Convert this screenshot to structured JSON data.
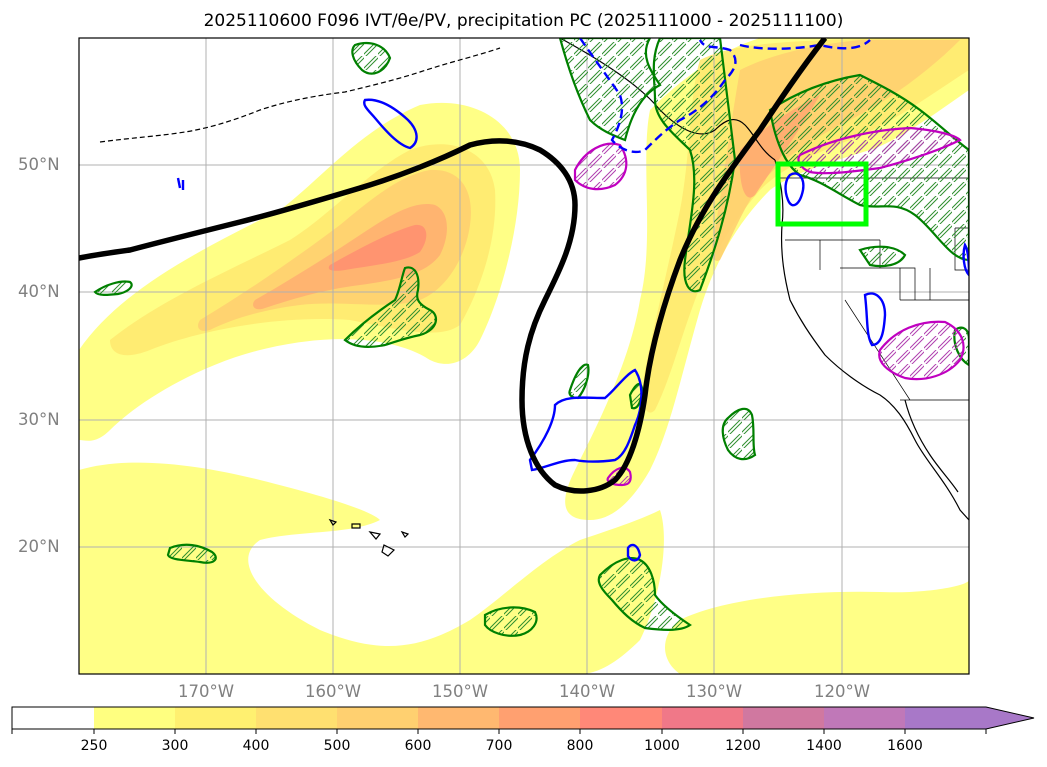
{
  "title": "2025110600 F096 IVT/θe/PV, precipitation PC (2025111000 - 2025111100)",
  "map": {
    "region": "North Pacific / Western North America",
    "lon_range_deg": [
      -180,
      -110
    ],
    "lat_range_deg": [
      10,
      60
    ],
    "lat_labels": [
      "50°N",
      "40°N",
      "30°N",
      "20°N"
    ],
    "lon_labels": [
      "170°W",
      "160°W",
      "150°W",
      "140°W",
      "130°W",
      "120°W"
    ],
    "box_of_interest_color": "#00ff00",
    "contour_colors": {
      "theta_e": "#000000",
      "pv_positive": "#0000ff",
      "pv_negative_dashed": "#0000ff",
      "precip_pc_green": "#008000",
      "precip_pc_magenta": "#c000c0"
    }
  },
  "colorbar": {
    "levels": [
      "250",
      "300",
      "400",
      "500",
      "600",
      "700",
      "800",
      "1000",
      "1200",
      "1400",
      "1600"
    ],
    "colors": [
      "#ffffff",
      "#ffff80",
      "#fff070",
      "#ffe070",
      "#ffd070",
      "#ffb870",
      "#ffa070",
      "#ff8878",
      "#f07888",
      "#d078a0",
      "#c078b8",
      "#a878c8"
    ],
    "extend": "max"
  }
}
